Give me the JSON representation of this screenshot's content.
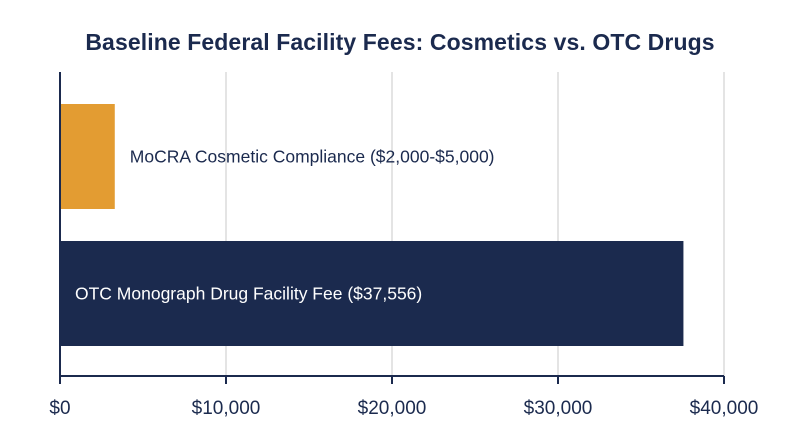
{
  "chart_data": {
    "type": "bar",
    "orientation": "horizontal",
    "title": "Baseline Federal Facility Fees: Cosmetics vs. OTC Drugs",
    "xlabel": "",
    "ylabel": "",
    "xlim": [
      0,
      40000
    ],
    "x_ticks": [
      0,
      10000,
      20000,
      30000,
      40000
    ],
    "x_tick_labels": [
      "$0",
      "$10,000",
      "$20,000",
      "$30,000",
      "$40,000"
    ],
    "grid": true,
    "categories": [
      "MoCRA Cosmetic Compliance ($2,000-$5,000)",
      "OTC Monograph Drug Facility Fee ($37,556)"
    ],
    "values": [
      3300,
      37556
    ],
    "colors": [
      "#e39c32",
      "#1b2a4e"
    ],
    "label_placement": [
      "outside",
      "inside"
    ]
  }
}
